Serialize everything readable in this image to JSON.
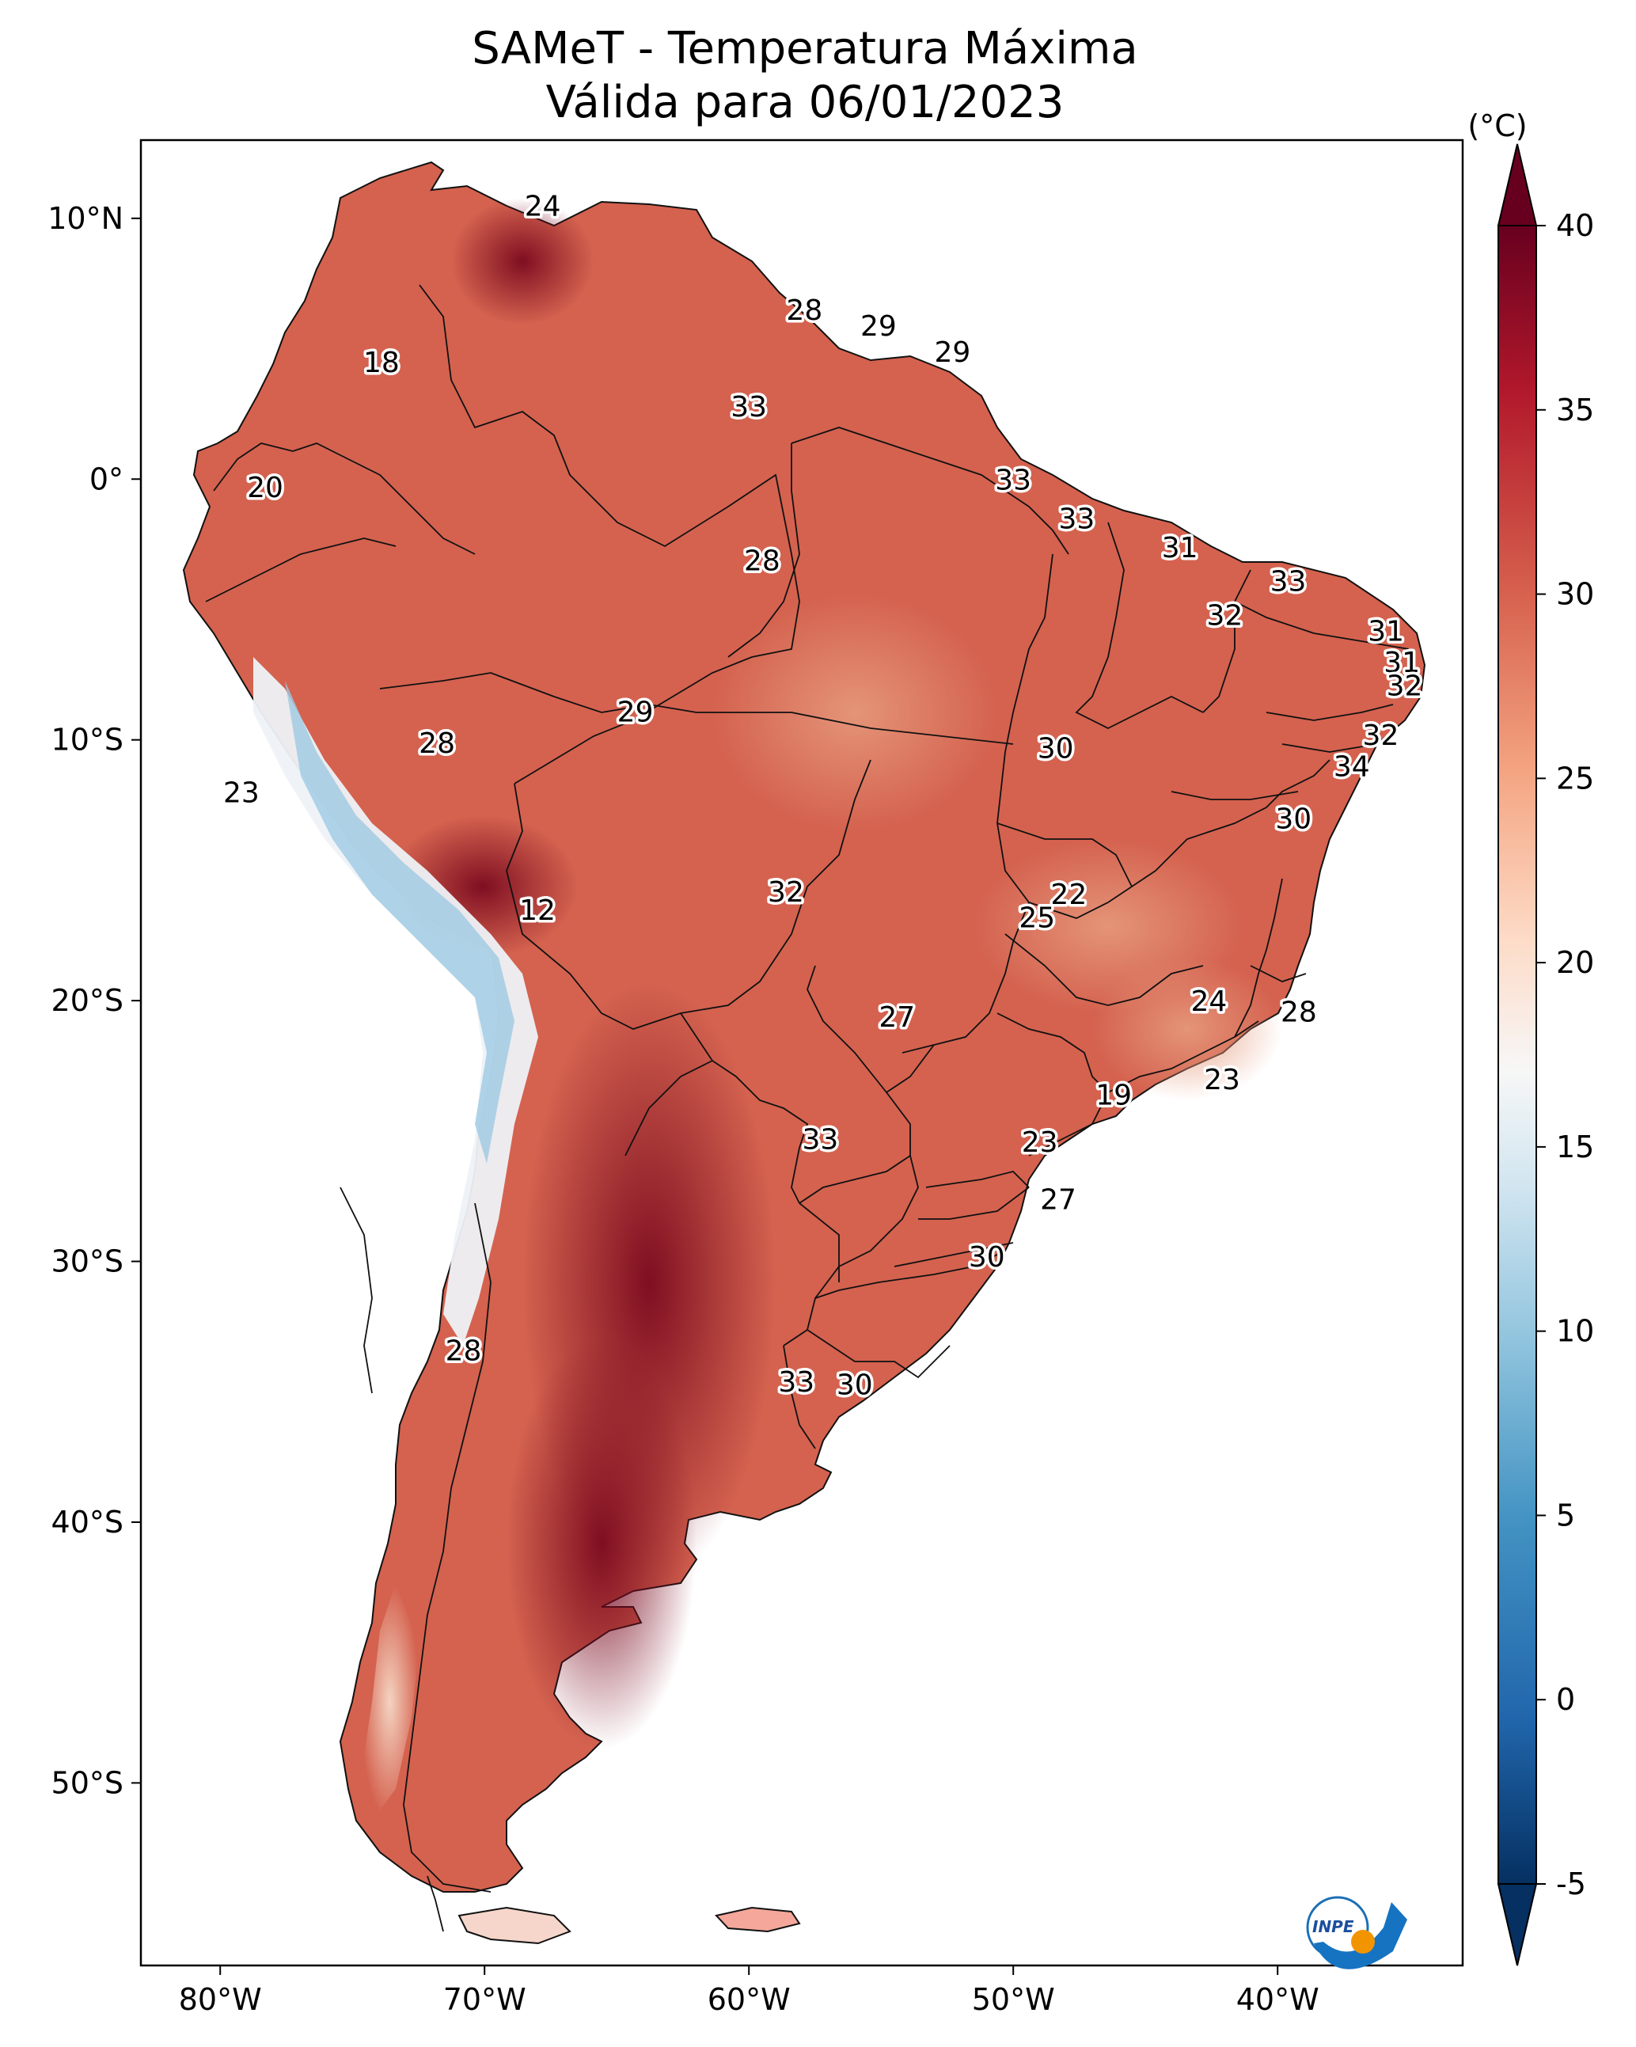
{
  "title": {
    "line1": "SAMeT - Temperatura Máxima",
    "line2": "Válida para 06/01/2023"
  },
  "map": {
    "lon_ticks": [
      "80°W",
      "70°W",
      "60°W",
      "50°W",
      "40°W"
    ],
    "lat_ticks": [
      "10°N",
      "0°",
      "10°S",
      "20°S",
      "30°S",
      "40°S",
      "50°S"
    ],
    "extent": {
      "lon": [
        -83,
        -33
      ],
      "lat": [
        -57,
        13
      ]
    },
    "labels": [
      {
        "v": "24",
        "lon": -67.8,
        "lat": 10.5
      },
      {
        "v": "28",
        "lon": -57.9,
        "lat": 6.5
      },
      {
        "v": "29",
        "lon": -55.1,
        "lat": 5.9
      },
      {
        "v": "29",
        "lon": -52.3,
        "lat": 4.9
      },
      {
        "v": "18",
        "lon": -73.9,
        "lat": 4.5
      },
      {
        "v": "33",
        "lon": -60.0,
        "lat": 2.8
      },
      {
        "v": "20",
        "lon": -78.3,
        "lat": -0.3
      },
      {
        "v": "33",
        "lon": -50.0,
        "lat": 0.0
      },
      {
        "v": "33",
        "lon": -47.6,
        "lat": -1.5
      },
      {
        "v": "31",
        "lon": -43.7,
        "lat": -2.6
      },
      {
        "v": "28",
        "lon": -59.5,
        "lat": -3.1
      },
      {
        "v": "33",
        "lon": -39.6,
        "lat": -3.9
      },
      {
        "v": "32",
        "lon": -42.0,
        "lat": -5.2
      },
      {
        "v": "31",
        "lon": -35.9,
        "lat": -5.8
      },
      {
        "v": "31",
        "lon": -35.3,
        "lat": -7.0
      },
      {
        "v": "32",
        "lon": -35.2,
        "lat": -7.9
      },
      {
        "v": "29",
        "lon": -64.3,
        "lat": -8.9
      },
      {
        "v": "28",
        "lon": -71.8,
        "lat": -10.1
      },
      {
        "v": "30",
        "lon": -48.4,
        "lat": -10.3
      },
      {
        "v": "32",
        "lon": -36.1,
        "lat": -9.8
      },
      {
        "v": "34",
        "lon": -37.2,
        "lat": -11.0
      },
      {
        "v": "23",
        "lon": -79.2,
        "lat": -12.0
      },
      {
        "v": "30",
        "lon": -39.4,
        "lat": -13.0
      },
      {
        "v": "32",
        "lon": -58.6,
        "lat": -15.8
      },
      {
        "v": "22",
        "lon": -47.9,
        "lat": -15.9
      },
      {
        "v": "25",
        "lon": -49.1,
        "lat": -16.8
      },
      {
        "v": "12",
        "lon": -68.0,
        "lat": -16.5
      },
      {
        "v": "24",
        "lon": -42.6,
        "lat": -20.0
      },
      {
        "v": "27",
        "lon": -54.4,
        "lat": -20.6
      },
      {
        "v": "28",
        "lon": -39.2,
        "lat": -20.4
      },
      {
        "v": "23",
        "lon": -42.1,
        "lat": -23.0
      },
      {
        "v": "19",
        "lon": -46.2,
        "lat": -23.6
      },
      {
        "v": "33",
        "lon": -57.3,
        "lat": -25.3
      },
      {
        "v": "23",
        "lon": -49.0,
        "lat": -25.4
      },
      {
        "v": "27",
        "lon": -48.3,
        "lat": -27.6
      },
      {
        "v": "30",
        "lon": -51.0,
        "lat": -29.8
      },
      {
        "v": "28",
        "lon": -70.8,
        "lat": -33.4
      },
      {
        "v": "33",
        "lon": -58.2,
        "lat": -34.6
      },
      {
        "v": "30",
        "lon": -56.0,
        "lat": -34.7
      }
    ]
  },
  "colorbar": {
    "unit": "(°C)",
    "ticks": [
      "-5",
      "0",
      "5",
      "10",
      "15",
      "20",
      "25",
      "30",
      "35",
      "40"
    ],
    "range": [
      -5,
      40
    ],
    "colors": [
      "#053061",
      "#2166ac",
      "#4393c3",
      "#92c5de",
      "#d1e5f0",
      "#f7f7f7",
      "#fddbc7",
      "#f4a582",
      "#d6604d",
      "#b2182b",
      "#67001f"
    ]
  },
  "logo": {
    "text": "INPE"
  }
}
